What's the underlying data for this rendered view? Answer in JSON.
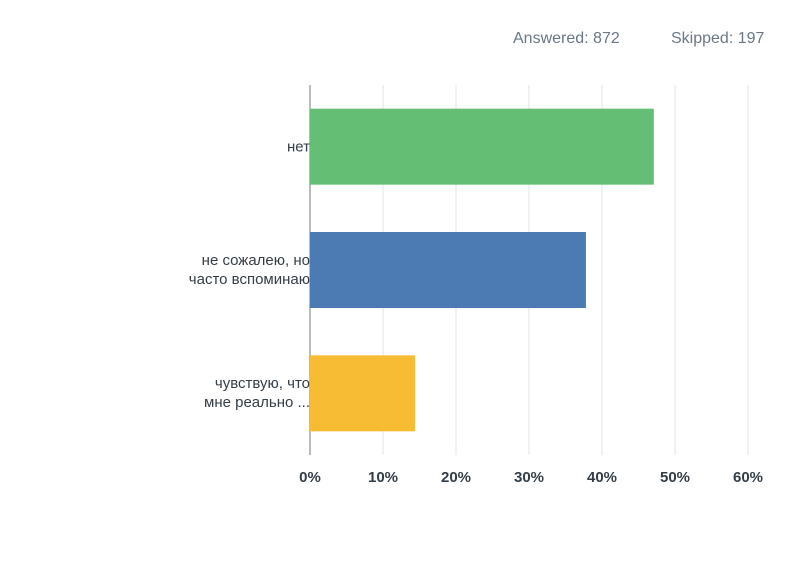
{
  "header": {
    "answered": "Answered: 872",
    "skipped": "Skipped: 197"
  },
  "chart_data": {
    "type": "bar",
    "orientation": "horizontal",
    "categories": [
      "нет",
      "не сожалею, но\nчасто вспоминаю",
      "чувствую, что\nмне реально ..."
    ],
    "values": [
      47.1,
      37.8,
      14.4
    ],
    "colors": [
      "#64bf74",
      "#4c7ab3",
      "#f7bc33"
    ],
    "xlim": [
      0,
      60
    ],
    "xticks": [
      {
        "value": 0,
        "label": "0%"
      },
      {
        "value": 10,
        "label": "10%"
      },
      {
        "value": 20,
        "label": "20%"
      },
      {
        "value": 30,
        "label": "30%"
      },
      {
        "value": 40,
        "label": "40%"
      },
      {
        "value": 50,
        "label": "50%"
      },
      {
        "value": 60,
        "label": "60%"
      }
    ],
    "grid": true
  }
}
